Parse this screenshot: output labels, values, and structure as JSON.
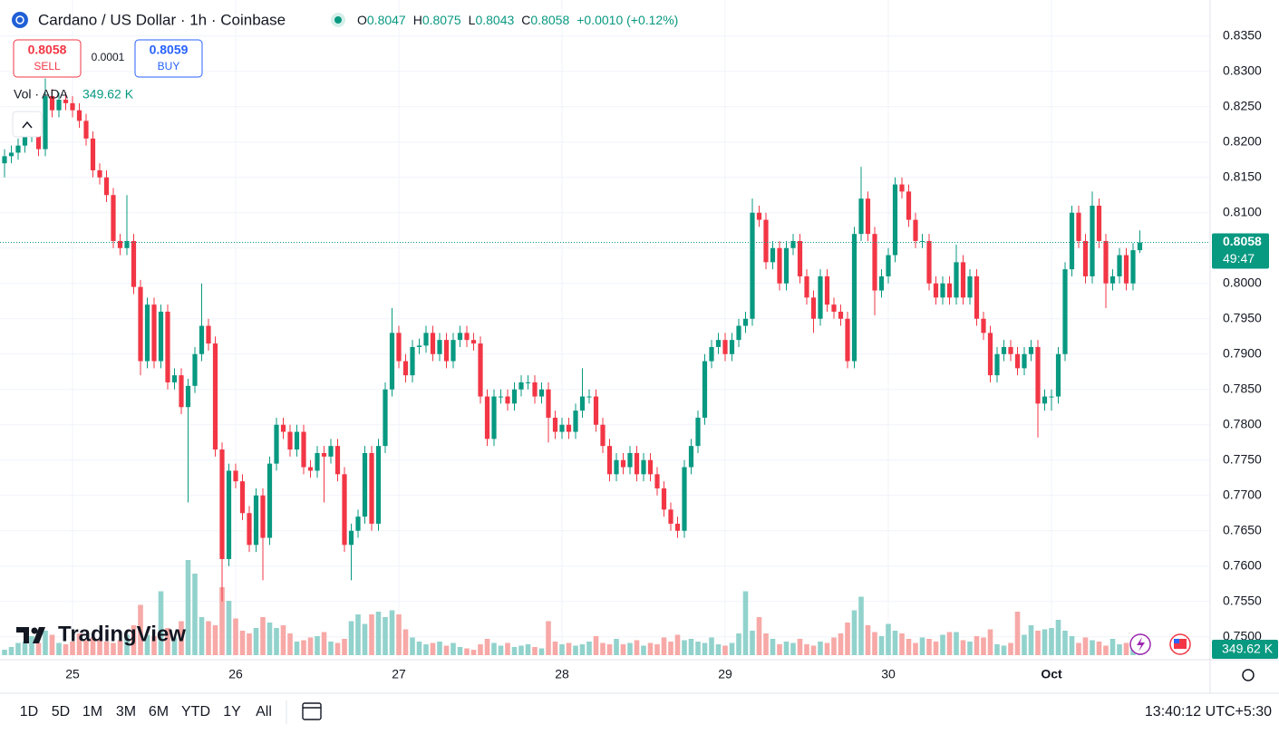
{
  "header": {
    "symbol": "Cardano / US Dollar · 1h · Coinbase",
    "ohlc": [
      {
        "label": "O",
        "value": "0.8047"
      },
      {
        "label": "H",
        "value": "0.8075"
      },
      {
        "label": "L",
        "value": "0.8043"
      },
      {
        "label": "C",
        "value": "0.8058"
      }
    ],
    "change": "+0.0010 (+0.12%)"
  },
  "trade": {
    "sell_price": "0.8058",
    "sell_label": "SELL",
    "spread": "0.0001",
    "buy_price": "0.8059",
    "buy_label": "BUY"
  },
  "logo": "TradingView",
  "timeframes": [
    "1D",
    "5D",
    "1M",
    "3M",
    "6M",
    "YTD",
    "1Y",
    "All"
  ],
  "clock": "13:40:12 UTC+5:30",
  "chart_data": {
    "type": "candlestick",
    "categories": [
      null,
      null,
      null,
      null,
      null,
      null,
      null,
      null,
      null,
      null,
      "25",
      null,
      null,
      null,
      null,
      null,
      null,
      null,
      null,
      null,
      null,
      null,
      null,
      null,
      null,
      null,
      null,
      null,
      null,
      null,
      null,
      null,
      null,
      null,
      "26",
      null,
      null,
      null,
      null,
      null,
      null,
      null,
      null,
      null,
      null,
      null,
      null,
      null,
      null,
      null,
      null,
      null,
      null,
      null,
      null,
      null,
      null,
      null,
      "27",
      null,
      null,
      null,
      null,
      null,
      null,
      null,
      null,
      null,
      null,
      null,
      null,
      null,
      null,
      null,
      null,
      null,
      null,
      null,
      null,
      null,
      null,
      null,
      "28",
      null,
      null,
      null,
      null,
      null,
      null,
      null,
      null,
      null,
      null,
      null,
      null,
      null,
      null,
      null,
      null,
      null,
      null,
      null,
      null,
      null,
      null,
      null,
      "29",
      null,
      null,
      null,
      null,
      null,
      null,
      null,
      null,
      null,
      null,
      null,
      null,
      null,
      null,
      null,
      null,
      null,
      null,
      null,
      null,
      null,
      null,
      null,
      "30",
      null,
      null,
      null,
      null,
      null,
      null,
      null,
      null,
      null,
      null,
      null,
      null,
      null,
      null,
      null,
      null,
      null,
      null,
      null,
      null,
      null,
      null,
      null,
      "Oct",
      null,
      null,
      null,
      null,
      null,
      null,
      null,
      null,
      null,
      null,
      null,
      null,
      null
    ],
    "open": [
      0.817,
      0.818,
      0.8185,
      0.8195,
      0.821,
      0.823,
      0.819,
      0.8265,
      0.8245,
      0.826,
      0.8255,
      0.8245,
      0.823,
      0.8205,
      0.816,
      0.815,
      0.8125,
      0.806,
      0.805,
      0.806,
      0.7995,
      0.789,
      0.797,
      0.789,
      0.796,
      0.786,
      0.787,
      0.7825,
      0.7855,
      0.79,
      0.794,
      0.7915,
      0.7765,
      0.761,
      0.7735,
      0.772,
      0.7675,
      0.763,
      0.77,
      0.764,
      0.7745,
      0.78,
      0.779,
      0.7765,
      0.779,
      0.774,
      0.7735,
      0.776,
      0.7755,
      0.777,
      0.773,
      0.763,
      0.765,
      0.767,
      0.776,
      0.766,
      0.777,
      0.785,
      0.793,
      0.789,
      0.787,
      0.791,
      0.7912,
      0.793,
      0.79,
      0.792,
      0.789,
      0.792,
      0.793,
      0.792,
      0.7915,
      0.784,
      0.778,
      0.784,
      0.784,
      0.783,
      0.785,
      0.786,
      0.786,
      0.784,
      0.785,
      0.781,
      0.779,
      0.78,
      0.779,
      0.782,
      0.784,
      0.784,
      0.78,
      0.777,
      0.773,
      0.775,
      0.774,
      0.776,
      0.773,
      0.775,
      0.773,
      0.771,
      0.768,
      0.766,
      0.765,
      0.774,
      0.777,
      0.781,
      0.789,
      0.791,
      0.792,
      0.79,
      0.792,
      0.794,
      0.795,
      0.81,
      0.809,
      0.803,
      0.805,
      0.8,
      0.805,
      0.806,
      0.801,
      0.798,
      0.795,
      0.801,
      0.797,
      0.796,
      0.795,
      0.789,
      0.807,
      0.812,
      0.807,
      0.799,
      0.801,
      0.804,
      0.814,
      0.813,
      0.809,
      0.806,
      0.806,
      0.8,
      0.798,
      0.8,
      0.798,
      0.803,
      0.798,
      0.801,
      0.795,
      0.793,
      0.787,
      0.79,
      0.791,
      0.79,
      0.788,
      0.79,
      0.791,
      0.783,
      0.784,
      0.784,
      0.79,
      0.802,
      0.81,
      0.806,
      0.801,
      0.811,
      0.806,
      0.8,
      0.801,
      0.804,
      0.8,
      0.8047
    ],
    "high": [
      0.819,
      0.8195,
      0.8205,
      0.822,
      0.824,
      0.824,
      0.829,
      0.8275,
      0.827,
      0.827,
      0.8265,
      0.8255,
      0.824,
      0.8215,
      0.817,
      0.816,
      0.8135,
      0.807,
      0.8125,
      0.807,
      0.8005,
      0.798,
      0.798,
      0.797,
      0.797,
      0.788,
      0.788,
      0.7865,
      0.791,
      0.8,
      0.795,
      0.7925,
      0.7775,
      0.7745,
      0.7745,
      0.773,
      0.7685,
      0.771,
      0.771,
      0.7755,
      0.781,
      0.781,
      0.78,
      0.78,
      0.78,
      0.775,
      0.777,
      0.777,
      0.778,
      0.778,
      0.774,
      0.766,
      0.768,
      0.777,
      0.777,
      0.778,
      0.786,
      0.7965,
      0.794,
      0.79,
      0.792,
      0.7922,
      0.794,
      0.794,
      0.793,
      0.793,
      0.793,
      0.794,
      0.794,
      0.793,
      0.7925,
      0.785,
      0.785,
      0.785,
      0.785,
      0.786,
      0.787,
      0.787,
      0.787,
      0.786,
      0.786,
      0.782,
      0.781,
      0.781,
      0.783,
      0.788,
      0.785,
      0.785,
      0.781,
      0.778,
      0.776,
      0.776,
      0.777,
      0.777,
      0.776,
      0.776,
      0.774,
      0.772,
      0.769,
      0.767,
      0.775,
      0.778,
      0.782,
      0.79,
      0.792,
      0.793,
      0.793,
      0.793,
      0.795,
      0.796,
      0.812,
      0.811,
      0.81,
      0.806,
      0.806,
      0.806,
      0.807,
      0.807,
      0.802,
      0.799,
      0.802,
      0.802,
      0.798,
      0.797,
      0.796,
      0.808,
      0.8165,
      0.813,
      0.808,
      0.802,
      0.805,
      0.815,
      0.815,
      0.814,
      0.81,
      0.807,
      0.807,
      0.801,
      0.801,
      0.801,
      0.8055,
      0.804,
      0.802,
      0.802,
      0.796,
      0.794,
      0.791,
      0.792,
      0.792,
      0.791,
      0.791,
      0.792,
      0.792,
      0.785,
      0.785,
      0.791,
      0.803,
      0.811,
      0.811,
      0.807,
      0.813,
      0.812,
      0.807,
      0.802,
      0.805,
      0.805,
      0.8057,
      0.8075
    ],
    "low": [
      0.815,
      0.817,
      0.8175,
      0.8185,
      0.82,
      0.818,
      0.818,
      0.8235,
      0.8235,
      0.8245,
      0.8235,
      0.822,
      0.8195,
      0.815,
      0.814,
      0.8115,
      0.805,
      0.804,
      0.804,
      0.7985,
      0.787,
      0.788,
      0.788,
      0.788,
      0.785,
      0.785,
      0.7815,
      0.769,
      0.7845,
      0.789,
      0.7905,
      0.7755,
      0.755,
      0.76,
      0.771,
      0.7665,
      0.762,
      0.762,
      0.758,
      0.763,
      0.7735,
      0.778,
      0.7755,
      0.7755,
      0.773,
      0.7725,
      0.7725,
      0.769,
      0.7745,
      0.772,
      0.762,
      0.758,
      0.764,
      0.766,
      0.765,
      0.765,
      0.776,
      0.784,
      0.788,
      0.786,
      0.786,
      0.79,
      0.7902,
      0.789,
      0.789,
      0.788,
      0.788,
      0.791,
      0.791,
      0.7905,
      0.783,
      0.777,
      0.777,
      0.783,
      0.782,
      0.782,
      0.784,
      0.785,
      0.783,
      0.783,
      0.7775,
      0.778,
      0.778,
      0.778,
      0.778,
      0.781,
      0.783,
      0.779,
      0.776,
      0.772,
      0.772,
      0.773,
      0.773,
      0.772,
      0.772,
      0.772,
      0.77,
      0.767,
      0.765,
      0.764,
      0.764,
      0.773,
      0.776,
      0.78,
      0.788,
      0.79,
      0.789,
      0.789,
      0.791,
      0.793,
      0.794,
      0.808,
      0.802,
      0.802,
      0.799,
      0.799,
      0.804,
      0.8,
      0.797,
      0.793,
      0.794,
      0.796,
      0.795,
      0.794,
      0.788,
      0.788,
      0.806,
      0.806,
      0.7955,
      0.798,
      0.8,
      0.803,
      0.812,
      0.808,
      0.805,
      0.805,
      0.799,
      0.797,
      0.797,
      0.797,
      0.797,
      0.797,
      0.797,
      0.794,
      0.792,
      0.786,
      0.786,
      0.789,
      0.789,
      0.787,
      0.787,
      0.789,
      0.7782,
      0.782,
      0.782,
      0.783,
      0.789,
      0.801,
      0.805,
      0.8,
      0.8,
      0.805,
      0.7965,
      0.799,
      0.8,
      0.799,
      0.799,
      0.8043
    ],
    "close": [
      0.818,
      0.8185,
      0.8195,
      0.821,
      0.823,
      0.819,
      0.8265,
      0.8245,
      0.826,
      0.8255,
      0.8245,
      0.823,
      0.8205,
      0.816,
      0.815,
      0.8125,
      0.806,
      0.805,
      0.806,
      0.7995,
      0.789,
      0.797,
      0.789,
      0.796,
      0.786,
      0.787,
      0.7825,
      0.7855,
      0.79,
      0.794,
      0.7915,
      0.7765,
      0.761,
      0.7735,
      0.772,
      0.7675,
      0.763,
      0.77,
      0.764,
      0.7745,
      0.78,
      0.779,
      0.7765,
      0.779,
      0.774,
      0.7735,
      0.776,
      0.7755,
      0.777,
      0.773,
      0.763,
      0.765,
      0.767,
      0.776,
      0.766,
      0.777,
      0.785,
      0.793,
      0.789,
      0.787,
      0.791,
      0.7912,
      0.793,
      0.79,
      0.792,
      0.789,
      0.792,
      0.793,
      0.792,
      0.7915,
      0.784,
      0.778,
      0.784,
      0.784,
      0.783,
      0.785,
      0.786,
      0.786,
      0.784,
      0.785,
      0.781,
      0.779,
      0.78,
      0.779,
      0.782,
      0.784,
      0.784,
      0.78,
      0.777,
      0.773,
      0.775,
      0.774,
      0.776,
      0.773,
      0.775,
      0.773,
      0.771,
      0.768,
      0.766,
      0.765,
      0.774,
      0.777,
      0.781,
      0.789,
      0.791,
      0.792,
      0.79,
      0.792,
      0.794,
      0.795,
      0.81,
      0.809,
      0.803,
      0.805,
      0.8,
      0.805,
      0.806,
      0.801,
      0.798,
      0.795,
      0.801,
      0.797,
      0.796,
      0.795,
      0.789,
      0.807,
      0.812,
      0.807,
      0.799,
      0.801,
      0.804,
      0.814,
      0.813,
      0.809,
      0.806,
      0.806,
      0.8,
      0.798,
      0.8,
      0.798,
      0.803,
      0.798,
      0.801,
      0.795,
      0.793,
      0.787,
      0.79,
      0.791,
      0.79,
      0.788,
      0.79,
      0.791,
      0.783,
      0.784,
      0.784,
      0.79,
      0.802,
      0.81,
      0.806,
      0.801,
      0.811,
      0.806,
      0.8,
      0.801,
      0.804,
      0.8,
      0.8047,
      0.8058
    ],
    "up_color": "#089981",
    "down_color": "#f23645",
    "ylim": [
      0.7474,
      0.8401
    ],
    "yticks": [
      {
        "value": 0.75,
        "label": "0.7500"
      },
      {
        "value": 0.755,
        "label": "0.7550"
      },
      {
        "value": 0.76,
        "label": "0.7600"
      },
      {
        "value": 0.765,
        "label": "0.7650"
      },
      {
        "value": 0.77,
        "label": "0.7700"
      },
      {
        "value": 0.775,
        "label": "0.7750"
      },
      {
        "value": 0.78,
        "label": "0.7800"
      },
      {
        "value": 0.785,
        "label": "0.7850"
      },
      {
        "value": 0.79,
        "label": "0.7900"
      },
      {
        "value": 0.795,
        "label": "0.7950"
      },
      {
        "value": 0.8,
        "label": "0.8000"
      },
      {
        "value": 0.805,
        "label": "0.8050"
      },
      {
        "value": 0.81,
        "label": "0.8100"
      },
      {
        "value": 0.815,
        "label": "0.8150"
      },
      {
        "value": 0.82,
        "label": "0.8200"
      },
      {
        "value": 0.825,
        "label": "0.8250"
      },
      {
        "value": 0.83,
        "label": "0.8300"
      },
      {
        "value": 0.835,
        "label": "0.8350"
      }
    ],
    "grid": true,
    "last_price": {
      "value": 0.8058,
      "label": "0.8058"
    },
    "countdown": "49:47",
    "volume": {
      "name": "Vol · ADA",
      "value_label": "349.62 K",
      "lim": [
        0,
        16000
      ],
      "up_color": "#92d2cc",
      "down_color": "#f7a9a7",
      "values": [
        400,
        600,
        900,
        1000,
        1400,
        900,
        1800,
        1500,
        900,
        800,
        1000,
        1600,
        1100,
        1300,
        1200,
        1000,
        900,
        1100,
        1500,
        2200,
        3700,
        1500,
        1400,
        4700,
        2000,
        1300,
        2500,
        7000,
        6000,
        2800,
        2500,
        2200,
        5000,
        4000,
        2700,
        1800,
        1600,
        2000,
        2800,
        2400,
        2000,
        2200,
        1600,
        1000,
        1100,
        1300,
        1400,
        1700,
        1000,
        900,
        1200,
        2500,
        3000,
        2300,
        3000,
        3200,
        2800,
        3300,
        3000,
        1900,
        1300,
        1000,
        800,
        900,
        1000,
        700,
        900,
        600,
        500,
        400,
        800,
        1200,
        900,
        700,
        900,
        600,
        700,
        800,
        600,
        500,
        2500,
        1000,
        800,
        900,
        700,
        800,
        1000,
        1400,
        900,
        800,
        1200,
        800,
        900,
        1100,
        700,
        900,
        800,
        1300,
        1000,
        1500,
        1100,
        1200,
        1000,
        900,
        1300,
        800,
        700,
        900,
        1600,
        4700,
        1800,
        2800,
        1600,
        1200,
        800,
        1000,
        900,
        1200,
        800,
        700,
        1000,
        900,
        1300,
        1600,
        2400,
        3300,
        4300,
        2200,
        1700,
        1400,
        2300,
        1800,
        1600,
        1200,
        900,
        1300,
        1200,
        1000,
        1500,
        1700,
        1700,
        1100,
        1000,
        1400,
        1300,
        1900,
        800,
        700,
        900,
        3200,
        1500,
        2200,
        1800,
        1900,
        2000,
        2600,
        1800,
        1400,
        900,
        1300,
        1100,
        1000,
        700,
        1200,
        800,
        900,
        600,
        349.62
      ]
    }
  }
}
